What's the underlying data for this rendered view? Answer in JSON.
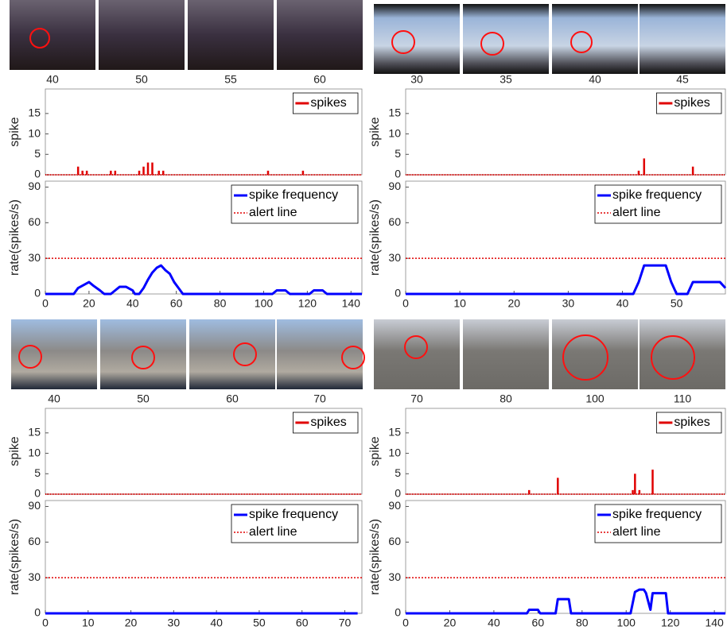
{
  "frame_strips": [
    [
      "40",
      "50",
      "55",
      "60"
    ],
    [
      "30",
      "35",
      "40",
      "45"
    ],
    [
      "40",
      "50",
      "60",
      "70"
    ],
    [
      "70",
      "80",
      "100",
      "110"
    ]
  ],
  "chart_data": [
    {
      "type": "bar",
      "ylabel": "spike",
      "xlim": [
        0,
        145
      ],
      "ylim": [
        0,
        21
      ],
      "yticks": [
        0,
        5,
        10,
        15
      ],
      "legend": "upper right",
      "series": [
        {
          "name": "spikes",
          "color": "#e00000",
          "x": [
            15,
            17,
            19,
            30,
            32,
            43,
            45,
            47,
            49,
            52,
            54,
            102,
            118
          ],
          "values": [
            2,
            1,
            1,
            1,
            1,
            1,
            2,
            3,
            3,
            1,
            1,
            1,
            1
          ]
        }
      ]
    },
    {
      "type": "line",
      "ylabel": "rate(spikes/s)",
      "xlim": [
        0,
        145
      ],
      "ylim": [
        0,
        95
      ],
      "yticks": [
        0,
        30,
        60,
        90
      ],
      "xticks": [
        0,
        20,
        40,
        60,
        80,
        100,
        120,
        140
      ],
      "legend": "upper right",
      "series": [
        {
          "name": "spike frequency",
          "color": "#0000ff",
          "x": [
            0,
            13,
            15,
            18,
            20,
            22,
            25,
            27,
            30,
            32,
            34,
            37,
            40,
            41,
            43,
            45,
            47,
            49,
            51,
            53,
            55,
            57,
            59,
            61,
            63,
            104,
            106,
            110,
            112,
            121,
            123,
            127,
            129,
            145
          ],
          "values": [
            0,
            0,
            5,
            8,
            10,
            7,
            3,
            0,
            0,
            3,
            6,
            6,
            3,
            0,
            0,
            5,
            12,
            18,
            22,
            24,
            20,
            17,
            10,
            5,
            0,
            0,
            3,
            3,
            0,
            0,
            3,
            3,
            0,
            0
          ]
        },
        {
          "name": "alert line",
          "color": "#e00000",
          "dotted": true,
          "x": [
            0,
            145
          ],
          "values": [
            30,
            30
          ]
        }
      ]
    },
    {
      "type": "bar",
      "ylabel": "spike",
      "xlim": [
        0,
        59
      ],
      "ylim": [
        0,
        21
      ],
      "yticks": [
        0,
        5,
        10,
        15
      ],
      "legend": "upper right",
      "series": [
        {
          "name": "spikes",
          "color": "#e00000",
          "x": [
            43,
            44,
            53
          ],
          "values": [
            1,
            4,
            2
          ]
        }
      ]
    },
    {
      "type": "line",
      "ylabel": "rate(spikes/s)",
      "xlim": [
        0,
        59
      ],
      "ylim": [
        0,
        95
      ],
      "yticks": [
        0,
        30,
        60,
        90
      ],
      "xticks": [
        0,
        10,
        20,
        30,
        40,
        50
      ],
      "legend": "upper right",
      "series": [
        {
          "name": "spike frequency",
          "color": "#0000ff",
          "x": [
            0,
            42,
            43,
            44,
            48,
            49,
            50,
            52,
            53,
            58,
            59
          ],
          "values": [
            0,
            0,
            10,
            24,
            24,
            10,
            0,
            0,
            10,
            10,
            5
          ]
        },
        {
          "name": "alert line",
          "color": "#e00000",
          "dotted": true,
          "x": [
            0,
            59
          ],
          "values": [
            30,
            30
          ]
        }
      ]
    },
    {
      "type": "bar",
      "ylabel": "spike",
      "xlim": [
        0,
        74
      ],
      "ylim": [
        0,
        21
      ],
      "yticks": [
        0,
        5,
        10,
        15
      ],
      "legend": "upper right",
      "series": [
        {
          "name": "spikes",
          "color": "#e00000",
          "x": [],
          "values": []
        }
      ]
    },
    {
      "type": "line",
      "ylabel": "rate(spikes/s)",
      "xlim": [
        0,
        74
      ],
      "ylim": [
        0,
        95
      ],
      "yticks": [
        0,
        30,
        60,
        90
      ],
      "xticks": [
        0,
        10,
        20,
        30,
        40,
        50,
        60,
        70
      ],
      "legend": "upper right",
      "series": [
        {
          "name": "spike frequency",
          "color": "#0000ff",
          "x": [
            0,
            73
          ],
          "values": [
            0,
            0
          ]
        },
        {
          "name": "alert line",
          "color": "#e00000",
          "dotted": true,
          "x": [
            0,
            74
          ],
          "values": [
            30,
            30
          ]
        }
      ]
    },
    {
      "type": "bar",
      "ylabel": "spike",
      "xlim": [
        0,
        145
      ],
      "ylim": [
        0,
        21
      ],
      "yticks": [
        0,
        5,
        10,
        15
      ],
      "legend": "upper right",
      "series": [
        {
          "name": "spikes",
          "color": "#e00000",
          "x": [
            56,
            69,
            103,
            104,
            106,
            112
          ],
          "values": [
            1,
            4,
            1,
            5,
            1,
            6
          ]
        }
      ]
    },
    {
      "type": "line",
      "ylabel": "rate(spikes/s)",
      "xlim": [
        0,
        145
      ],
      "ylim": [
        0,
        95
      ],
      "yticks": [
        0,
        30,
        60,
        90
      ],
      "xticks": [
        0,
        20,
        40,
        60,
        80,
        100,
        120,
        140
      ],
      "legend": "upper right",
      "series": [
        {
          "name": "spike frequency",
          "color": "#0000ff",
          "x": [
            0,
            55,
            56,
            60,
            61,
            68,
            69,
            74,
            75,
            102,
            104,
            106,
            108,
            109,
            111,
            112,
            118,
            119,
            145
          ],
          "values": [
            0,
            0,
            3,
            3,
            0,
            0,
            12,
            12,
            0,
            0,
            18,
            20,
            20,
            17,
            3,
            17,
            17,
            0,
            0
          ]
        },
        {
          "name": "alert line",
          "color": "#e00000",
          "dotted": true,
          "x": [
            0,
            145
          ],
          "values": [
            30,
            30
          ]
        }
      ]
    }
  ]
}
